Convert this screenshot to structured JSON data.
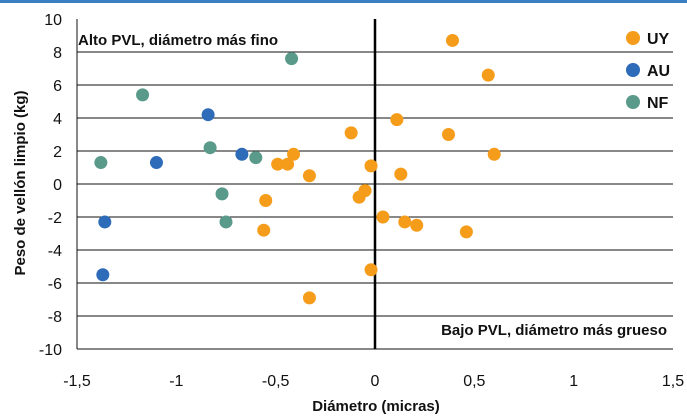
{
  "chart_data": {
    "type": "scatter",
    "xlabel": "Diámetro (micras)",
    "ylabel": "Peso de vellón limpio (kg)",
    "xlim": [
      -1.5,
      1.5
    ],
    "ylim": [
      -10,
      10
    ],
    "x_ticks": [
      -1.5,
      -1,
      -0.5,
      0,
      0.5,
      1,
      1.5
    ],
    "x_tick_labels": [
      "-1,5",
      "-1",
      "-0,5",
      "0",
      "0,5",
      "1",
      "1,5"
    ],
    "y_ticks": [
      -10,
      -8,
      -6,
      -4,
      -2,
      0,
      2,
      4,
      6,
      8,
      10
    ],
    "y_tick_labels": [
      "-10",
      "-8",
      "-6",
      "-4",
      "-2",
      "0",
      "2",
      "4",
      "6",
      "8",
      "10"
    ],
    "grid": "horizontal",
    "legend_position": "top-right",
    "annotations": {
      "top_left": "Alto PVL, diámetro más fino",
      "bottom_right": "Bajo PVL, diámetro más grueso"
    },
    "series": [
      {
        "name": "UY",
        "color": "#f59c1a",
        "points": [
          [
            0.39,
            8.7
          ],
          [
            0.57,
            6.6
          ],
          [
            0.11,
            3.9
          ],
          [
            -0.12,
            3.1
          ],
          [
            0.37,
            3.0
          ],
          [
            0.6,
            1.8
          ],
          [
            -0.41,
            1.8
          ],
          [
            -0.49,
            1.2
          ],
          [
            -0.44,
            1.2
          ],
          [
            -0.02,
            1.1
          ],
          [
            0.13,
            0.6
          ],
          [
            -0.33,
            0.5
          ],
          [
            -0.05,
            -0.4
          ],
          [
            -0.08,
            -0.8
          ],
          [
            -0.55,
            -1.0
          ],
          [
            0.04,
            -2.0
          ],
          [
            0.15,
            -2.3
          ],
          [
            0.21,
            -2.5
          ],
          [
            -0.56,
            -2.8
          ],
          [
            0.46,
            -2.9
          ],
          [
            -0.02,
            -5.2
          ],
          [
            -0.33,
            -6.9
          ]
        ]
      },
      {
        "name": "AU",
        "color": "#2e6bb8",
        "points": [
          [
            -0.84,
            4.2
          ],
          [
            -0.67,
            1.8
          ],
          [
            -1.1,
            1.3
          ],
          [
            -1.36,
            -2.3
          ],
          [
            -1.37,
            -5.5
          ]
        ]
      },
      {
        "name": "NF",
        "color": "#5a9a8a",
        "points": [
          [
            -0.42,
            7.6
          ],
          [
            -1.17,
            5.4
          ],
          [
            -0.83,
            2.2
          ],
          [
            -0.6,
            1.6
          ],
          [
            -1.38,
            1.3
          ],
          [
            -0.77,
            -0.6
          ],
          [
            -0.75,
            -2.3
          ]
        ]
      }
    ]
  }
}
